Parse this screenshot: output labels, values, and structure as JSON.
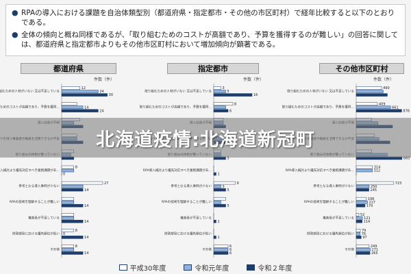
{
  "notes": [
    "RPAの導入における課題を自治体類型別（都道府県・指定都市・その他の市区町村）で経年比較すると以下のとおりである。",
    "全体の傾向と概ね同様であるが、「取り組むためのコストが高額であり、予算を獲得するのが難しい」の回答に関しては、都道府県と指定都市よりもその他市区町村において増加傾向が顕著である。"
  ],
  "banner": {
    "text": "北海道疫情:北海道新冠町"
  },
  "colors": {
    "h30": "#ffffff",
    "r1": "#8fb3dc",
    "r2": "#1f3d6b",
    "outline": "#1f3d6b"
  },
  "chart_data": [
    {
      "type": "bar",
      "title": "都道府県",
      "unit_label": "件数（件）",
      "categories": [
        "取り組むための人材がいない 又は不足している",
        "取り組むためのコストが高額であり、予算を獲得するのが難しい",
        "導入効果が不明",
        "ノウハウを持つ事業者や職員を活用できるか不安",
        "取り組みの体制が整っていない",
        "RPA導入検討より優先対応すべき業務課題がある",
        "参考となる導入事例が少ない",
        "RPAの技術を理解することが難しい",
        "推進役が不足している",
        "財政部局における優先順位が低い",
        "その他"
      ],
      "series": [
        {
          "name": "平成30年度",
          "values": [
            12,
            10,
            12,
            10,
            8,
            8,
            27,
            8,
            8,
            8,
            8
          ]
        },
        {
          "name": "令和元年度",
          "values": [
            24,
            14,
            8,
            10,
            6,
            8,
            14,
            8,
            8,
            0,
            8
          ]
        },
        {
          "name": "令和２年度",
          "values": [
            30,
            24,
            14,
            14,
            8,
            0,
            14,
            14,
            14,
            14,
            14
          ]
        }
      ],
      "labels": [
        [
          "12",
          "24",
          "30"
        ],
        [
          "",
          "14",
          "24"
        ],
        [
          "",
          "",
          ""
        ],
        [
          "",
          "",
          ""
        ],
        [
          "",
          "",
          ""
        ],
        [
          "8",
          "",
          "0"
        ],
        [
          "27",
          "",
          "14"
        ],
        [
          "",
          "",
          "14"
        ],
        [
          "",
          "",
          "14"
        ],
        [
          "8",
          "0",
          "14"
        ],
        [
          "8",
          "",
          "14"
        ]
      ],
      "xlim": [
        0,
        36
      ]
    },
    {
      "type": "bar",
      "title": "指定都市",
      "unit_label": "件数（件）",
      "categories": [
        "取り組むための人材がいない 又は不足している",
        "取り組むためのコストが高額であり、予算を獲得するのが難しい",
        "導入効果が不明",
        "ノウハウを持つ事業者や職員を活用できるか不安",
        "取り組みの体制が整っていない",
        "RPA導入検討より優先対応すべき業務課題がある",
        "参考となる導入事例が少ない",
        "RPAの技術を理解することが難しい",
        "推進役が不足している",
        "財政部局における優先順位が低い",
        "その他"
      ],
      "series": [
        {
          "name": "平成30年度",
          "values": [
            3,
            8,
            4,
            4,
            3,
            0,
            9,
            5,
            0,
            0,
            6
          ]
        },
        {
          "name": "令和元年度",
          "values": [
            5,
            5,
            4,
            4,
            3,
            0,
            3,
            3,
            0,
            0,
            6
          ]
        },
        {
          "name": "令和２年度",
          "values": [
            16,
            6,
            5,
            5,
            5,
            1,
            5,
            5,
            1,
            1,
            6
          ]
        }
      ],
      "labels": [
        [
          "3",
          "5",
          "16"
        ],
        [
          "8",
          "",
          "6"
        ],
        [
          "",
          "",
          ""
        ],
        [
          "",
          "",
          ""
        ],
        [
          "",
          "",
          "5"
        ],
        [
          "",
          "",
          "1"
        ],
        [
          "9",
          "3",
          "5"
        ],
        [
          "",
          "",
          "5"
        ],
        [
          "",
          "",
          "1"
        ],
        [
          "",
          "",
          "1"
        ],
        [
          "6",
          "6",
          "6"
        ]
      ],
      "xlim": [
        0,
        20
      ]
    },
    {
      "type": "bar",
      "title": "その他市区町村",
      "unit_label": "件数（件）",
      "categories": [
        "取り組むための人材がいない 又は不足している",
        "取り組むためのコストが高額であり、予算を獲得するのが難しい",
        "導入効果が不明",
        "ノウハウを持つ事業者や職員を活用できるか不安",
        "取り組みの体制が整っていない",
        "RPA導入検討より優先対応すべき業務課題がある",
        "参考となる導入事例が少ない",
        "RPAの技術を理解することが難しい",
        "推進役が不足している",
        "財政部局における優先順位が低い",
        "その他"
      ],
      "series": [
        {
          "name": "平成30年度",
          "values": [
            490,
            409,
            300,
            350,
            300,
            314,
            723,
            196,
            52,
            79,
            249
          ]
        },
        {
          "name": "令和元年度",
          "values": [
            520,
            661,
            420,
            440,
            600,
            312,
            250,
            217,
            121,
            76,
            271
          ]
        },
        {
          "name": "令和２年度",
          "values": [
            600,
            876,
            700,
            650,
            883,
            0,
            245,
            170,
            114,
            97,
            265
          ]
        }
      ],
      "labels": [
        [
          "490",
          "",
          ""
        ],
        [
          "409",
          "661",
          "876"
        ],
        [
          "",
          "",
          ""
        ],
        [
          "",
          "",
          ""
        ],
        [
          "",
          "",
          "883"
        ],
        [
          "314",
          "312",
          ""
        ],
        [
          "723",
          "250",
          "245"
        ],
        [
          "196",
          "217",
          "170"
        ],
        [
          "52",
          "121",
          "114"
        ],
        [
          "79",
          "76",
          "97"
        ],
        [
          "249",
          "271",
          "265"
        ]
      ],
      "xlim": [
        0,
        950
      ]
    }
  ]
}
